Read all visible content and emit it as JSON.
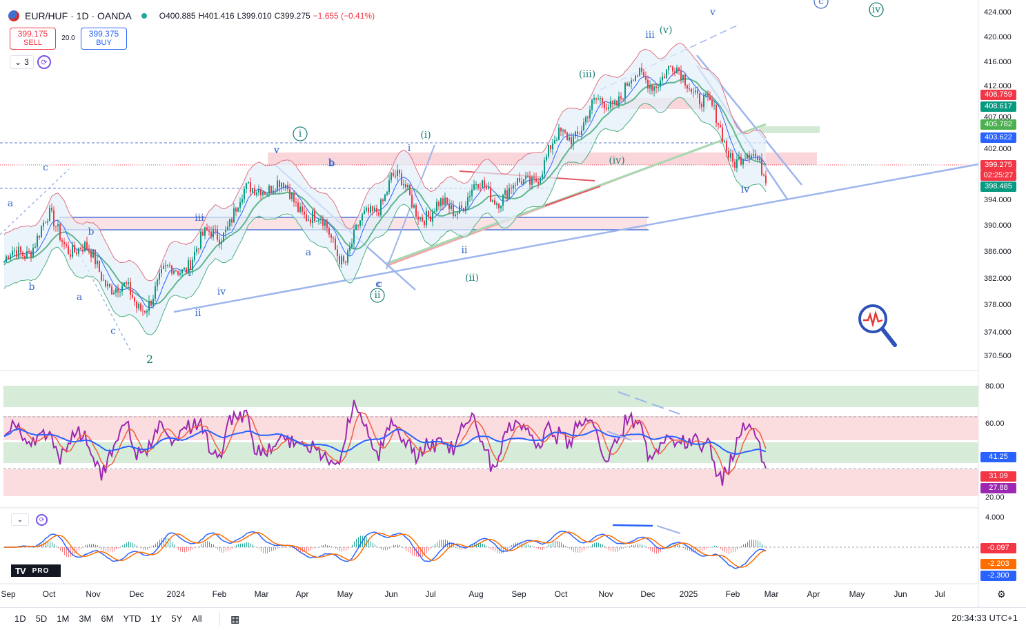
{
  "header": {
    "symbol": "EUR/HUF · 1D · OANDA",
    "open": "O400.885",
    "high": "H401.416",
    "low": "L399.010",
    "close": "C399.275",
    "change": "−1.655 (−0.41%)"
  },
  "trade": {
    "sell_price": "399.175",
    "sell_label": "SELL",
    "spread": "20.0",
    "buy_price": "399.375",
    "buy_label": "BUY"
  },
  "controls": {
    "collapse_count": "3"
  },
  "brand": {
    "badge": "PRO"
  },
  "price_axis": {
    "ticks": [
      "424.000",
      "420.000",
      "416.000",
      "412.000",
      "407.000",
      "402.000",
      "394.000",
      "390.000",
      "386.000",
      "382.000",
      "378.000",
      "374.000",
      "370.500"
    ],
    "tags": [
      {
        "text": "408.759",
        "color": "#f23645"
      },
      {
        "text": "408.617",
        "color": "#089981"
      },
      {
        "text": "405.782",
        "color": "#4caf50"
      },
      {
        "text": "403.622",
        "color": "#2962ff"
      },
      {
        "text": "399.275",
        "color": "#f23645"
      },
      {
        "text": "02:25:27",
        "color": "#f23645"
      },
      {
        "text": "398.485",
        "color": "#089981"
      }
    ]
  },
  "rsi_axis": {
    "ticks": [
      "80.00",
      "60.00",
      "20.00"
    ],
    "tags": [
      {
        "text": "41.25",
        "color": "#2962ff"
      },
      {
        "text": "31.09",
        "color": "#f23645"
      },
      {
        "text": "27.88",
        "color": "#9c27b0"
      }
    ]
  },
  "macd_axis": {
    "ticks": [
      "4.000"
    ],
    "tags": [
      {
        "text": "-0.097",
        "color": "#f23645"
      },
      {
        "text": "-2.203",
        "color": "#ff6d00"
      },
      {
        "text": "-2.300",
        "color": "#2962ff"
      }
    ]
  },
  "time_axis": [
    "Sep",
    "Oct",
    "Nov",
    "Dec",
    "2024",
    "Feb",
    "Mar",
    "Apr",
    "May",
    "Jun",
    "Jul",
    "Aug",
    "Sep",
    "Oct",
    "Nov",
    "Dec",
    "2025",
    "Feb",
    "Mar",
    "Apr",
    "May",
    "Jun",
    "Jul"
  ],
  "wave_labels": [
    "a",
    "b",
    "c",
    "c",
    "a",
    "b",
    "c",
    "b",
    "2",
    "i",
    "ii",
    "iii",
    "iv",
    "v",
    "b",
    "a",
    "c",
    "ii",
    "i",
    "(i)",
    "ii",
    "(ii)",
    "(iii)",
    "iii",
    "(v)",
    "(iv)",
    "v",
    "iv",
    "(iv)",
    "c",
    "i",
    "ii",
    "v",
    "iv"
  ],
  "ranges": [
    "1D",
    "5D",
    "1M",
    "3M",
    "6M",
    "YTD",
    "1Y",
    "5Y",
    "All"
  ],
  "clock": "20:34:33 UTC+1",
  "colors": {
    "up": "#089981",
    "down": "#f23645",
    "rsi": "#9c27b0",
    "ma": "#2962ff"
  },
  "chart_data": {
    "type": "candlestick",
    "series": [
      {
        "name": "EUR/HUF",
        "x": [
          "2023-09",
          "2023-10",
          "2023-11",
          "2023-12",
          "2024-01",
          "2024-02",
          "2024-03",
          "2024-04",
          "2024-05",
          "2024-06",
          "2024-07",
          "2024-08",
          "2024-09",
          "2024-10",
          "2024-11",
          "2024-12",
          "2025-01",
          "2025-02"
        ],
        "values": [
          384,
          391,
          385,
          378,
          384,
          390,
          398,
          394,
          386,
          398,
          392,
          396,
          396,
          404,
          410,
          414,
          414,
          402
        ]
      }
    ],
    "last": 399.275,
    "ylim": [
      370.5,
      424
    ]
  }
}
